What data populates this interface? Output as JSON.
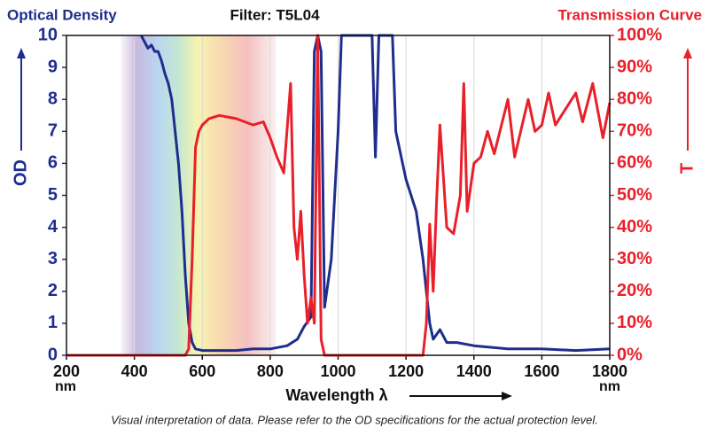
{
  "chart_data": {
    "type": "line",
    "title": "Filter: T5L04",
    "xlabel": "Wavelength λ",
    "x_unit": "nm",
    "ylabel": "OD",
    "y2label": "T",
    "note": "Visual interpretation of data. Please refer to the OD specifications for the actual protection level.",
    "xlim": [
      200,
      1800
    ],
    "xticks": [
      200,
      400,
      600,
      800,
      1000,
      1200,
      1400,
      1600,
      1800
    ],
    "ylim": [
      0,
      10
    ],
    "yticks": [
      0,
      1,
      2,
      3,
      4,
      5,
      6,
      7,
      8,
      9,
      10
    ],
    "y2lim": [
      0,
      100
    ],
    "y2ticks": [
      {
        "value": 0,
        "label": "0%"
      },
      {
        "value": 10,
        "label": "10%"
      },
      {
        "value": 20,
        "label": "20%"
      },
      {
        "value": 30,
        "label": "30%"
      },
      {
        "value": 40,
        "label": "40%"
      },
      {
        "value": 50,
        "label": "50%"
      },
      {
        "value": 60,
        "label": "60%"
      },
      {
        "value": 70,
        "label": "70%"
      },
      {
        "value": 80,
        "label": "80%"
      },
      {
        "value": 90,
        "label": "90%"
      },
      {
        "value": 100,
        "label": "100%"
      }
    ],
    "grid": true,
    "series": [
      {
        "name": "Optical Density",
        "color": "#1f2d8c",
        "x": [
          420,
          430,
          440,
          450,
          460,
          470,
          480,
          490,
          500,
          510,
          520,
          530,
          540,
          550,
          560,
          570,
          580,
          600,
          650,
          700,
          750,
          800,
          850,
          880,
          900,
          920,
          930,
          940,
          950,
          960,
          980,
          1000,
          1010,
          1100,
          1110,
          1120,
          1160,
          1170,
          1200,
          1230,
          1250,
          1270,
          1280,
          1300,
          1320,
          1350,
          1400,
          1450,
          1500,
          1600,
          1700,
          1800
        ],
        "values": [
          10,
          9.8,
          9.6,
          9.7,
          9.5,
          9.5,
          9.2,
          8.8,
          8.5,
          8,
          7,
          6,
          4.5,
          2.5,
          1,
          0.4,
          0.2,
          0.15,
          0.15,
          0.15,
          0.2,
          0.2,
          0.3,
          0.5,
          0.9,
          1.2,
          9.5,
          10,
          9.5,
          1.5,
          3,
          7,
          10,
          10,
          6.2,
          10,
          10,
          7,
          5.5,
          4.5,
          3,
          1,
          0.5,
          0.8,
          0.4,
          0.4,
          0.3,
          0.25,
          0.2,
          0.2,
          0.15,
          0.2
        ]
      },
      {
        "name": "Transmission Curve",
        "color": "#e8202a",
        "axis": "y2",
        "x": [
          200,
          550,
          560,
          570,
          580,
          590,
          600,
          620,
          650,
          700,
          750,
          780,
          800,
          820,
          840,
          860,
          870,
          880,
          890,
          900,
          910,
          920,
          930,
          940,
          950,
          960,
          1250,
          1260,
          1270,
          1280,
          1290,
          1300,
          1320,
          1340,
          1360,
          1370,
          1380,
          1400,
          1420,
          1440,
          1460,
          1500,
          1520,
          1560,
          1580,
          1600,
          1620,
          1640,
          1700,
          1720,
          1750,
          1780,
          1800
        ],
        "values": [
          0,
          0,
          2,
          30,
          65,
          70,
          72,
          74,
          75,
          74,
          72,
          73,
          68,
          62,
          57,
          85,
          40,
          30,
          45,
          25,
          10,
          18,
          10,
          100,
          5,
          0,
          0,
          10,
          41,
          20,
          48,
          72,
          40,
          38,
          50,
          85,
          45,
          60,
          62,
          70,
          63,
          80,
          62,
          80,
          70,
          72,
          82,
          72,
          82,
          73,
          85,
          68,
          79
        ]
      }
    ]
  }
}
